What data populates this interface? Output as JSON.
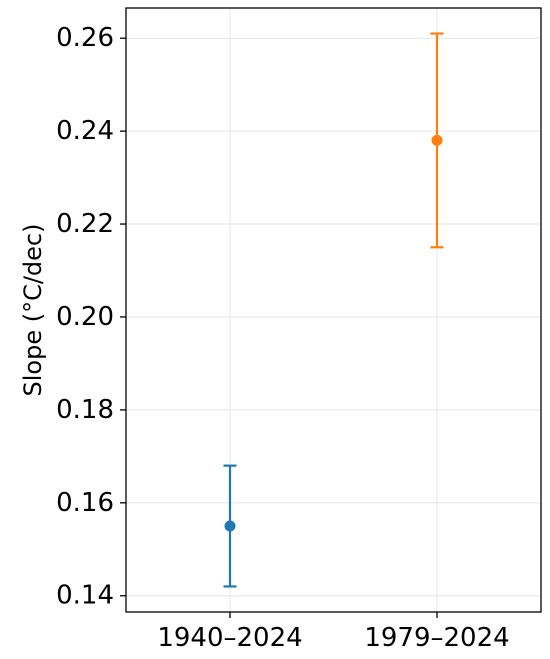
{
  "chart_data": {
    "type": "scatter",
    "title": "",
    "xlabel": "",
    "ylabel": "Slope (°C/dec)",
    "categories": [
      "1940–2024",
      "1979–2024"
    ],
    "points": [
      {
        "category": "1940–2024",
        "value": 0.155,
        "lower": 0.142,
        "upper": 0.168,
        "color": "#1f77b4"
      },
      {
        "category": "1979–2024",
        "value": 0.238,
        "lower": 0.215,
        "upper": 0.261,
        "color": "#ff7f0e"
      }
    ],
    "ylim": [
      0.1365,
      0.2665
    ],
    "yticks": [
      0.14,
      0.16,
      0.18,
      0.2,
      0.22,
      0.24,
      0.26
    ],
    "ytick_labels": [
      "0.14",
      "0.16",
      "0.18",
      "0.20",
      "0.22",
      "0.24",
      "0.26"
    ],
    "grid": true,
    "legend": "none"
  }
}
